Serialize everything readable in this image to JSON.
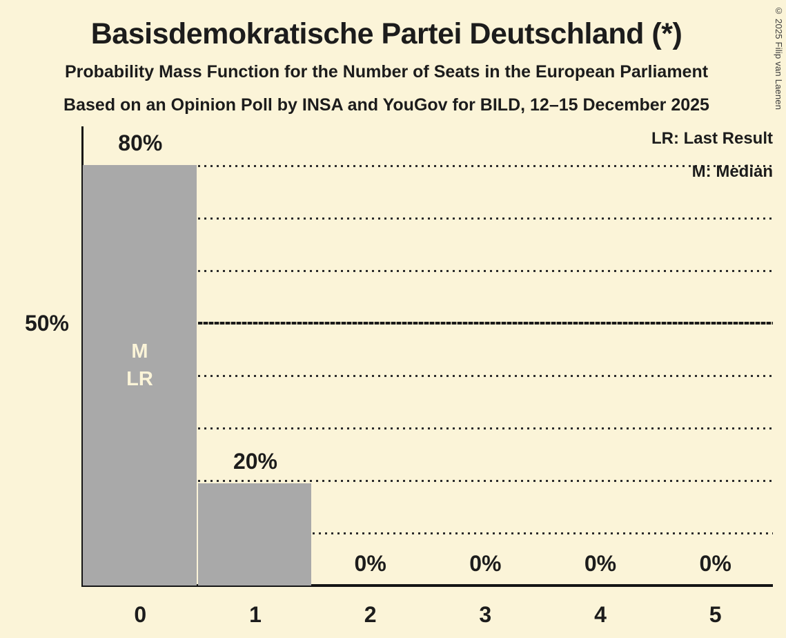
{
  "header": {
    "title": "Basisdemokratische Partei Deutschland (*)",
    "subtitle1": "Probability Mass Function for the Number of Seats in the European Parliament",
    "subtitle2": "Based on an Opinion Poll by INSA and YouGov for BILD, 12–15 December 2025"
  },
  "copyright": "© 2025 Filip van Laenen",
  "colors": {
    "background": "#fbf4d8",
    "bar": "#a9a9a9",
    "text": "#1c1c1c",
    "grid": "#2b2b2b",
    "bar_annotation_text": "#fbf4d8",
    "axis": "#141414"
  },
  "chart_data": {
    "type": "bar",
    "title": "Basisdemokratische Partei Deutschland (*)",
    "subtitle": "Probability Mass Function for the Number of Seats in the European Parliament",
    "source_line": "Based on an Opinion Poll by INSA and YouGov for BILD, 12–15 December 2025",
    "xlabel": "",
    "ylabel": "",
    "categories": [
      "0",
      "1",
      "2",
      "3",
      "4",
      "5"
    ],
    "values": [
      80,
      20,
      0,
      0,
      0,
      0
    ],
    "values_precise": [
      80.1,
      19.5,
      0,
      0,
      0,
      0
    ],
    "value_labels": [
      "80%",
      "20%",
      "0%",
      "0%",
      "0%",
      "0%"
    ],
    "ylim": [
      0,
      87.5
    ],
    "yticks": [
      {
        "value": 50,
        "label": "50%"
      }
    ],
    "gridlines_pct": [
      10,
      20,
      30,
      40,
      50,
      60,
      70,
      80
    ],
    "emphasized_gridline_pct": 50,
    "grid": true,
    "legend_position": "top-right",
    "legend": {
      "lr": "LR: Last Result",
      "m": "M: Median"
    },
    "bar_annotations": [
      {
        "category": "0",
        "lines": [
          "M",
          "LR"
        ]
      }
    ]
  }
}
